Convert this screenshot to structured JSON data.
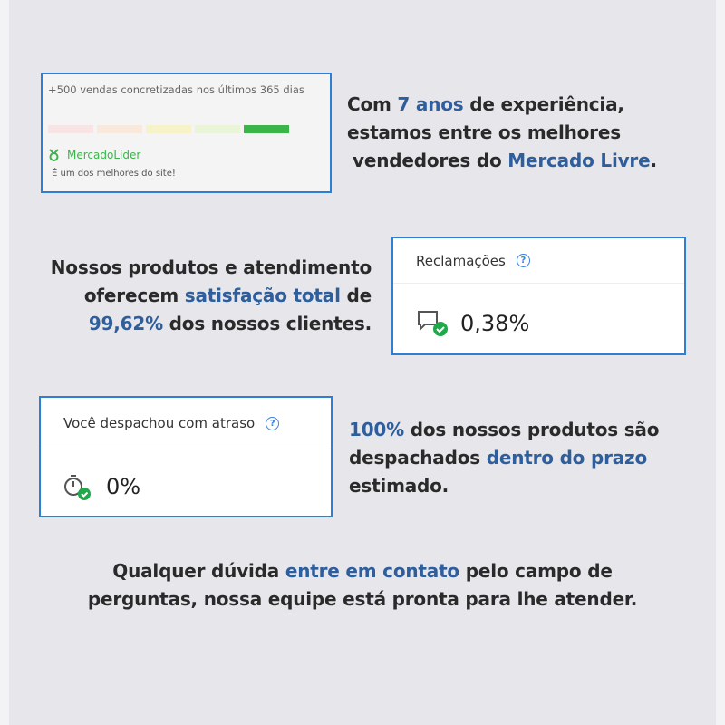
{
  "seller_card": {
    "sales_text": "+500 vendas concretizadas nos últimos 365 dias",
    "reputation_colors": [
      "#f8e4e4",
      "#f9e8dc",
      "#f7f3c9",
      "#e9f4d8",
      "#3ab54a"
    ],
    "reputation_level": 5,
    "badge": "MercadoLíder",
    "badge_sub": "É um dos melhores do site!"
  },
  "text1": {
    "a": "Com ",
    "b": "7 anos",
    "c": " de experiência,",
    "d": "estamos entre os melhores",
    "e": "vendedores do ",
    "f": "Mercado Livre",
    "g": "."
  },
  "text2": {
    "a": "Nossos produtos e atendimento",
    "b": "oferecem ",
    "c": "satisfação total",
    "d": " de",
    "e": "99,62%",
    "f": " dos nossos clientes."
  },
  "complaints_card": {
    "title": "Reclamações",
    "help": "?",
    "value": "0,38%"
  },
  "delay_card": {
    "title": "Você despachou com atraso",
    "help": "?",
    "value": "0%"
  },
  "text3": {
    "a": "100%",
    "b": " dos nossos produtos são",
    "c": "despachados ",
    "d": "dentro do prazo",
    "e": "estimado."
  },
  "footer": {
    "a": "Qualquer dúvida ",
    "b": "entre em contato",
    "c": " pelo campo de",
    "d": "perguntas, nossa equipe está pronta para lhe atender."
  },
  "colors": {
    "highlight": "#2e5f9c",
    "border": "#2d7fd6",
    "success": "#20a84a"
  }
}
